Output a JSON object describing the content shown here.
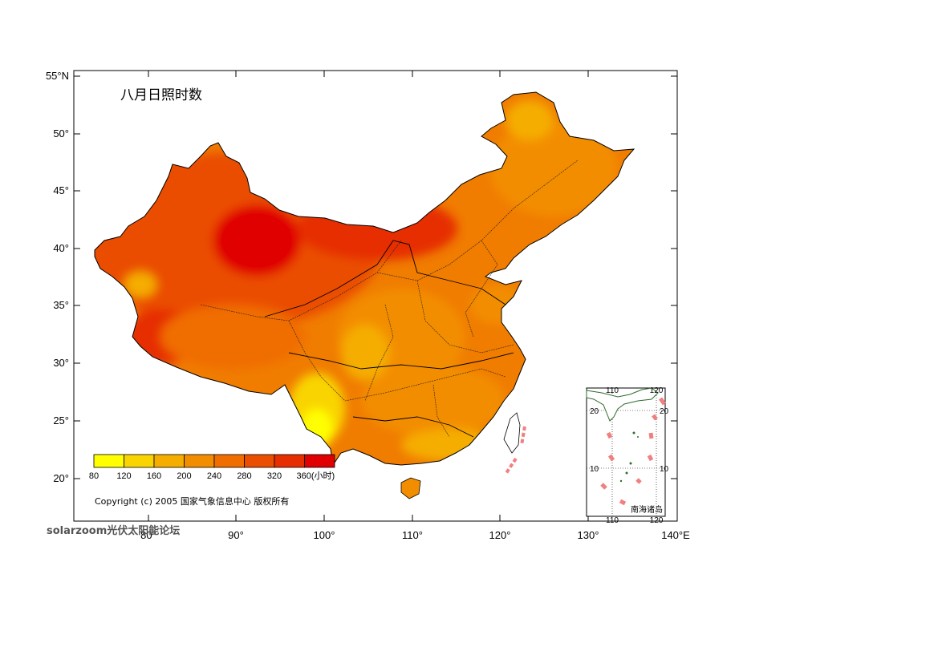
{
  "map": {
    "title": "八月日照时数",
    "lat_labels": [
      "55°N",
      "50°",
      "45°",
      "40°",
      "35°",
      "30°",
      "25°",
      "20°"
    ],
    "lon_labels": [
      "80°",
      "90°",
      "100°",
      "110°",
      "120°",
      "130°",
      "140°E"
    ],
    "legend": {
      "values": [
        "80",
        "120",
        "160",
        "200",
        "240",
        "280",
        "320",
        "360(小时)"
      ],
      "colors": [
        "#ffff00",
        "#f9d400",
        "#f5ad00",
        "#f38d00",
        "#f06d00",
        "#ea4e00",
        "#e62e00",
        "#e00000"
      ]
    },
    "copyright": "Copyright (c) 2005 国家气象信息中心 版权所有",
    "inset": {
      "top_labels": [
        "110",
        "120"
      ],
      "bottom_labels": [
        "110",
        "120"
      ],
      "left_labels": [
        "20",
        "10"
      ],
      "right_labels": [
        "20",
        "10"
      ],
      "caption": "南海诸岛"
    },
    "watermark": "solarzoom光伏太阳能论坛",
    "colors": {
      "low": "#ffff00",
      "high": "#e00000",
      "border": "#000000",
      "inset_land": "#2e6b2e",
      "island_dash": "#f08080"
    }
  }
}
